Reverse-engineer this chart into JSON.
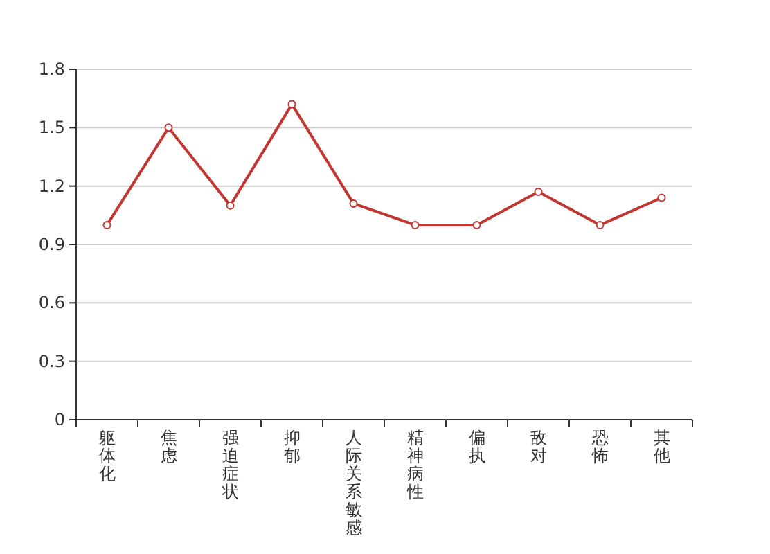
{
  "chart_data": {
    "type": "line",
    "categories": [
      "躯体化",
      "焦虑",
      "强迫症状",
      "抑郁",
      "人际关系敏感",
      "精神病性",
      "偏执",
      "敌对",
      "恐怖",
      "其他"
    ],
    "series": [
      {
        "color": "#c23531",
        "values": [
          1.0,
          1.5,
          1.1,
          1.62,
          1.11,
          1.0,
          1.0,
          1.17,
          1.0,
          1.14
        ]
      }
    ],
    "ylim": [
      0,
      1.8
    ],
    "yticks": [
      0,
      0.3,
      0.6,
      0.9,
      1.2,
      1.5,
      1.8
    ],
    "grid": "y",
    "marker": "circle",
    "line_style": "solid"
  }
}
